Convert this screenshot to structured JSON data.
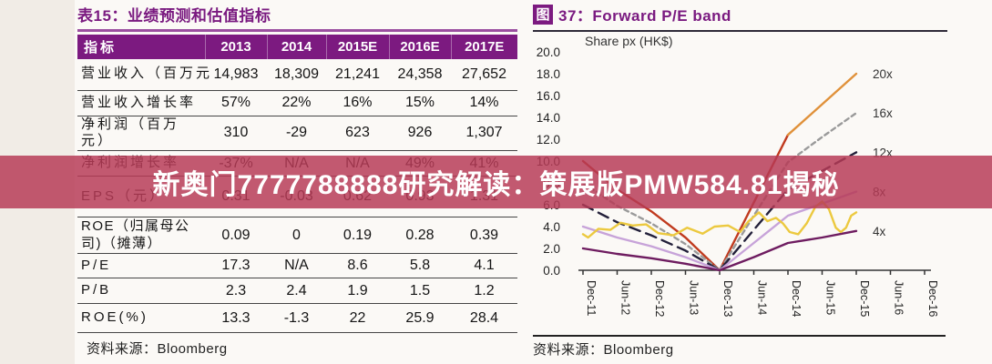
{
  "watermark": {
    "text": "新奥门7777788888研究解读：策展版PMW584.81揭秘",
    "color": "#b63a56"
  },
  "table_panel": {
    "title": "表15：业绩预测和估值指标",
    "columns": [
      "指标",
      "2013",
      "2014",
      "2015E",
      "2016E",
      "2017E"
    ],
    "rows": [
      {
        "label": "营业收入（百万元",
        "values": [
          "14,983",
          "18,309",
          "21,241",
          "24,358",
          "27,652"
        ]
      },
      {
        "label": "营业收入增长率",
        "values": [
          "57%",
          "22%",
          "16%",
          "15%",
          "14%"
        ]
      },
      {
        "label": "净利润（百万元）",
        "values": [
          "310",
          "-29",
          "623",
          "926",
          "1,307"
        ]
      },
      {
        "label": "净利润增长率",
        "values": [
          "-37%",
          "N/A",
          "N/A",
          "49%",
          "41%"
        ]
      },
      {
        "label": "EPS（元）",
        "values": [
          "0.31",
          "-0.03",
          "0.62",
          "0.93",
          "1.31"
        ]
      },
      {
        "label": "ROE（归属母公司)（摊薄）",
        "values": [
          "0.09",
          "0",
          "0.19",
          "0.28",
          "0.39"
        ]
      },
      {
        "label": "P/E",
        "values": [
          "17.3",
          "N/A",
          "8.6",
          "5.8",
          "4.1"
        ]
      },
      {
        "label": "P/B",
        "values": [
          "2.3",
          "2.4",
          "1.9",
          "1.5",
          "1.2"
        ]
      },
      {
        "label": "ROE(%)",
        "values": [
          "13.3",
          "-1.3",
          "22",
          "25.9",
          "28.4"
        ]
      }
    ],
    "source": "资料来源：Bloomberg"
  },
  "chart_panel": {
    "title_prefix": "图",
    "title": "37：Forward P/E band",
    "source": "资料来源：Bloomberg"
  },
  "chart_data": {
    "type": "line",
    "title": "图 37：Forward P/E band",
    "annotation": "Share px (HK$)",
    "x": [
      "Dec-11",
      "Jun-12",
      "Dec-12",
      "Jun-13",
      "Dec-13",
      "Jun-14",
      "Dec-14",
      "Jun-15",
      "Dec-15",
      "Jun-16",
      "Dec-16"
    ],
    "ylim": [
      0,
      20
    ],
    "ytick_step": 2,
    "grid": false,
    "legend_position": "right-of-lines",
    "series": [
      {
        "name": "20x",
        "style": "solid",
        "color": "#c03a1e",
        "color2": "#e0913a",
        "split_at": 6,
        "values": [
          10,
          7.4,
          5.4,
          3.0,
          0,
          6.2,
          12.4,
          15.2,
          18.0,
          null,
          null
        ],
        "label_y": 18.0
      },
      {
        "name": "16x",
        "style": "dashed",
        "color": "#9a9a9a",
        "dash": "5,4",
        "values": [
          8,
          5.9,
          4.3,
          2.4,
          0,
          5.0,
          9.9,
          12.2,
          14.4,
          null,
          null
        ],
        "label_y": 14.4
      },
      {
        "name": "12x",
        "style": "long-dash",
        "color": "#23203a",
        "dash": "12,7",
        "values": [
          6,
          4.4,
          3.2,
          1.8,
          0,
          3.7,
          7.4,
          9.1,
          10.8,
          null,
          null
        ],
        "label_y": 10.8
      },
      {
        "name": "8x",
        "style": "solid",
        "color": "#c7a3d9",
        "values": [
          4,
          3.0,
          2.2,
          1.2,
          0,
          2.5,
          5.0,
          6.1,
          7.2,
          null,
          null
        ],
        "label_y": 7.2
      },
      {
        "name": "4x",
        "style": "solid",
        "color": "#6e1c60",
        "values": [
          2,
          1.5,
          1.1,
          0.6,
          0,
          1.2,
          2.5,
          3.0,
          3.6,
          null,
          null
        ],
        "label_y": 3.6
      },
      {
        "name": "Share px",
        "style": "solid",
        "color": "#ecc93f",
        "points": [
          [
            0,
            3.3
          ],
          [
            0.15,
            3.0
          ],
          [
            0.45,
            3.8
          ],
          [
            0.8,
            3.7
          ],
          [
            1.1,
            4.35
          ],
          [
            1.45,
            4.1
          ],
          [
            1.85,
            4.2
          ],
          [
            2.2,
            3.4
          ],
          [
            2.65,
            3.2
          ],
          [
            3.05,
            3.9
          ],
          [
            3.5,
            3.35
          ],
          [
            3.85,
            4.0
          ],
          [
            4.25,
            4.1
          ],
          [
            4.6,
            3.5
          ],
          [
            4.85,
            4.5
          ],
          [
            5.15,
            5.3
          ],
          [
            5.4,
            4.5
          ],
          [
            5.65,
            4.8
          ],
          [
            5.85,
            4.3
          ],
          [
            6.05,
            3.5
          ],
          [
            6.3,
            3.3
          ],
          [
            6.55,
            4.3
          ],
          [
            6.8,
            5.8
          ],
          [
            7.0,
            6.3
          ],
          [
            7.2,
            5.6
          ],
          [
            7.4,
            3.9
          ],
          [
            7.55,
            3.5
          ],
          [
            7.7,
            3.9
          ],
          [
            7.85,
            5.0
          ],
          [
            8.0,
            5.3
          ]
        ]
      }
    ]
  }
}
